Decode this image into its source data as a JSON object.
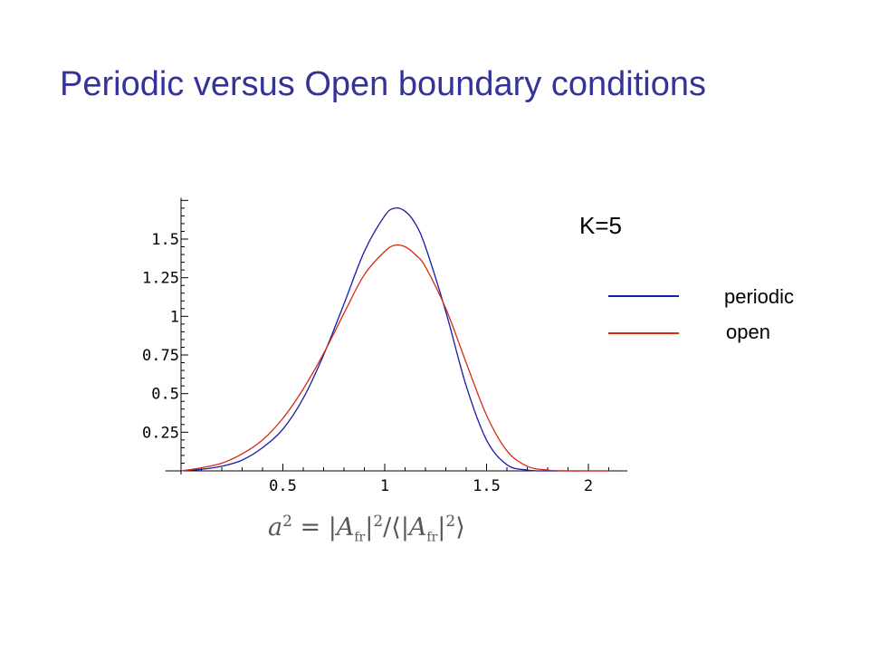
{
  "slide": {
    "title": "Periodic versus Open boundary conditions"
  },
  "annotation": "K=5",
  "formula": {
    "var": "a",
    "exp": "2",
    "eq": " = ",
    "bar_open": "|",
    "A": "A",
    "sub": "fr",
    "bar_close": "|",
    "exp2": "2",
    "slash": "/",
    "langle": "⟨",
    "exp3": "2",
    "rangle": "⟩"
  },
  "colors": {
    "title": "#33339a",
    "periodic": "#1a1aa8",
    "open": "#d42a10"
  },
  "chart_data": {
    "type": "line",
    "xlim": [
      -0.05,
      2.12
    ],
    "ylim": [
      0,
      1.75
    ],
    "xticks": [
      0.5,
      1,
      1.5,
      2
    ],
    "xtick_labels": [
      "0.5",
      "1",
      "1.5",
      "2"
    ],
    "yticks": [
      0.25,
      0.5,
      0.75,
      1,
      1.25,
      1.5
    ],
    "ytick_labels": [
      "0.25",
      "0.5",
      "0.75",
      "1",
      "1.25",
      "1.5"
    ],
    "grid": false,
    "legend_position": "right",
    "series": [
      {
        "name": "periodic",
        "color": "#1a1aa8",
        "x": [
          0,
          0.1,
          0.2,
          0.3,
          0.4,
          0.5,
          0.6,
          0.7,
          0.8,
          0.9,
          1.0,
          1.05,
          1.1,
          1.15,
          1.2,
          1.3,
          1.4,
          1.5,
          1.6,
          1.7,
          1.8,
          1.9,
          2.0,
          2.1
        ],
        "y": [
          0.0,
          0.01,
          0.03,
          0.07,
          0.15,
          0.27,
          0.47,
          0.75,
          1.08,
          1.42,
          1.65,
          1.7,
          1.68,
          1.6,
          1.45,
          1.03,
          0.55,
          0.2,
          0.04,
          0.005,
          0.0,
          0.0,
          0.0,
          0.0
        ]
      },
      {
        "name": "open",
        "color": "#d42a10",
        "x": [
          0,
          0.1,
          0.2,
          0.3,
          0.4,
          0.5,
          0.6,
          0.7,
          0.8,
          0.9,
          1.0,
          1.05,
          1.1,
          1.15,
          1.2,
          1.3,
          1.4,
          1.5,
          1.6,
          1.7,
          1.8,
          1.9,
          2.0,
          2.1
        ],
        "y": [
          0.0,
          0.02,
          0.05,
          0.11,
          0.2,
          0.34,
          0.53,
          0.76,
          1.02,
          1.27,
          1.42,
          1.46,
          1.45,
          1.4,
          1.32,
          1.05,
          0.7,
          0.36,
          0.13,
          0.03,
          0.005,
          0.0,
          0.0,
          0.0
        ]
      }
    ]
  }
}
